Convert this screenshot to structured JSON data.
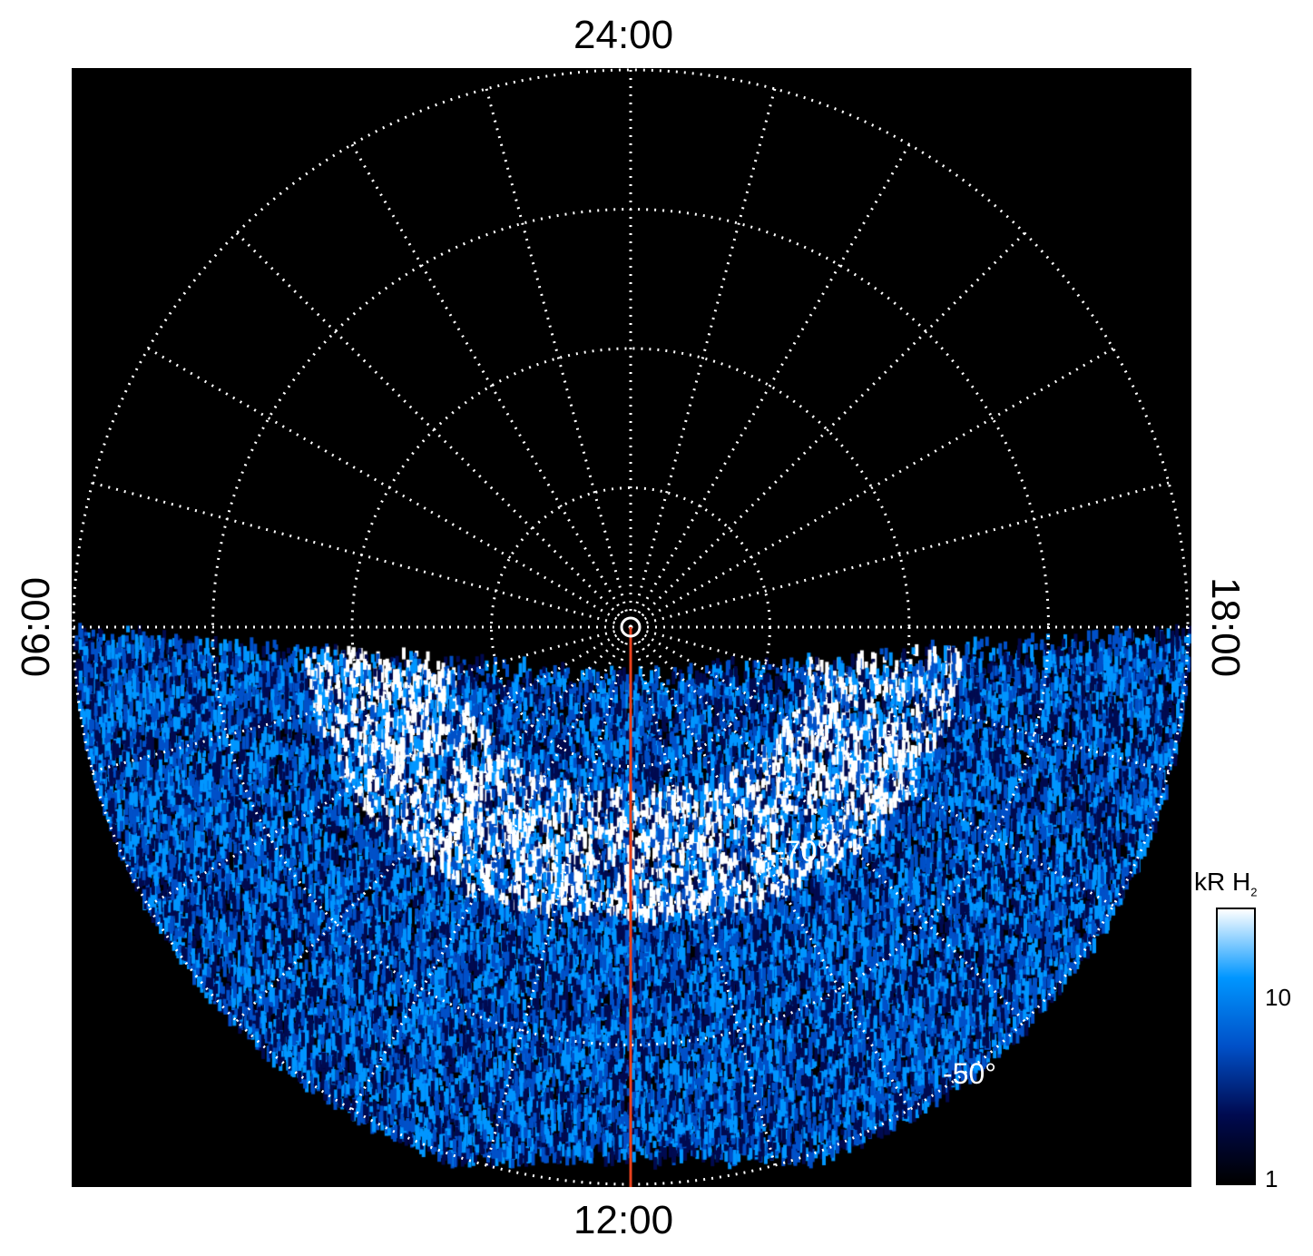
{
  "chart_data": {
    "type": "heatmap",
    "projection": "polar",
    "local_time_labels": {
      "top": "24:00",
      "bottom": "12:00",
      "left": "06:00",
      "right": "18:00"
    },
    "latitude_labels": [
      "-70°",
      "-50°"
    ],
    "latitude_circles": [
      -80,
      -70,
      -60,
      -50
    ],
    "meridian_spacing_hours": 1,
    "grid": "dotted white",
    "reference_line": {
      "local_time": "12:00",
      "color": "#e8401c"
    },
    "colorbar": {
      "label": "kR H",
      "label_subscript": "2",
      "scale": "log",
      "range": [
        1,
        30
      ],
      "tick_labels": [
        "1",
        "10"
      ],
      "colors": [
        "#000000",
        "#000a50",
        "#0050c8",
        "#0096ff",
        "#ffffff"
      ]
    }
  }
}
